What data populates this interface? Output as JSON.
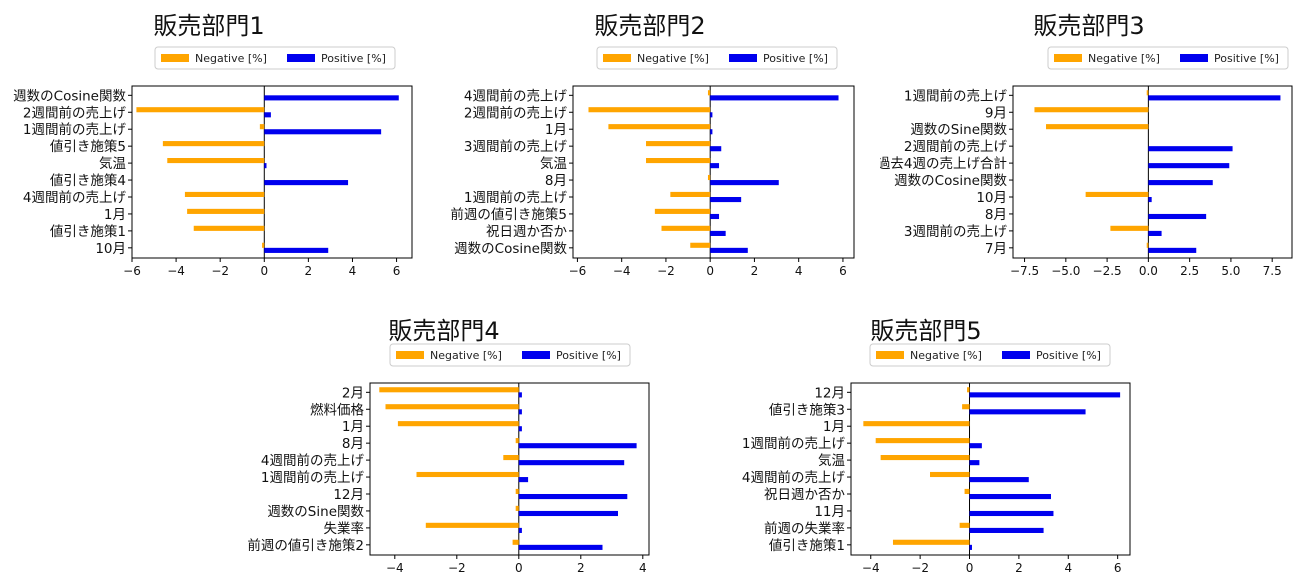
{
  "legend": {
    "negative": "Negative [%]",
    "positive": "Positive [%]"
  },
  "colors": {
    "negative": "#FFA500",
    "positive": "#0000EE"
  },
  "chart_data": [
    {
      "type": "bar",
      "orientation": "horizontal",
      "title": "販売部門1",
      "categories": [
        "週数のCosine関数",
        "2週間前の売上げ",
        "1週間前の売上げ",
        "値引き施策5",
        "気温",
        "値引き施策4",
        "4週間前の売上げ",
        "1月",
        "値引き施策1",
        "10月"
      ],
      "series": [
        {
          "name": "Negative [%]",
          "values": [
            0,
            -5.8,
            -0.2,
            -4.6,
            -4.4,
            0,
            -3.6,
            -3.5,
            -3.2,
            -0.1
          ]
        },
        {
          "name": "Positive [%]",
          "values": [
            6.1,
            0.3,
            5.3,
            0,
            0.1,
            3.8,
            0,
            0,
            0,
            2.9
          ]
        }
      ],
      "xlim": [
        -6.0,
        6.7
      ],
      "xticks": [
        -6,
        -4,
        -2,
        0,
        2,
        4,
        6
      ],
      "xtick_labels": [
        "−6",
        "−4",
        "−2",
        "0",
        "2",
        "4",
        "6"
      ],
      "legend_position": "top-center"
    },
    {
      "type": "bar",
      "orientation": "horizontal",
      "title": "販売部門2",
      "categories": [
        "4週間前の売上げ",
        "2週間前の売上げ",
        "1月",
        "3週間前の売上げ",
        "気温",
        "8月",
        "1週間前の売上げ",
        "前週の値引き施策5",
        "祝日週か否か",
        "週数のCosine関数"
      ],
      "series": [
        {
          "name": "Negative [%]",
          "values": [
            -0.1,
            -5.5,
            -4.6,
            -2.9,
            -2.9,
            -0.1,
            -1.8,
            -2.5,
            -2.2,
            -0.9
          ]
        },
        {
          "name": "Positive [%]",
          "values": [
            5.8,
            0.1,
            0.1,
            0.5,
            0.4,
            3.1,
            1.4,
            0.4,
            0.7,
            1.7
          ]
        }
      ],
      "xlim": [
        -6.2,
        6.5
      ],
      "xticks": [
        -6,
        -4,
        -2,
        0,
        2,
        4,
        6
      ],
      "xtick_labels": [
        "−6",
        "−4",
        "−2",
        "0",
        "2",
        "4",
        "6"
      ],
      "legend_position": "top-center"
    },
    {
      "type": "bar",
      "orientation": "horizontal",
      "title": "販売部門3",
      "categories": [
        "1週間前の売上げ",
        "9月",
        "週数のSine関数",
        "2週間前の売上げ",
        "過去4週の売上げ合計",
        "週数のCosine関数",
        "10月",
        "8月",
        "3週間前の売上げ",
        "7月"
      ],
      "series": [
        {
          "name": "Negative [%]",
          "values": [
            -0.1,
            -6.9,
            -6.2,
            0,
            0,
            0,
            -3.8,
            0,
            -2.3,
            -0.1
          ]
        },
        {
          "name": "Positive [%]",
          "values": [
            8.0,
            0,
            0,
            5.1,
            4.9,
            3.9,
            0.2,
            3.5,
            0.8,
            2.9
          ]
        }
      ],
      "xlim": [
        -8.2,
        8.7
      ],
      "xticks": [
        -7.5,
        -5.0,
        -2.5,
        0.0,
        2.5,
        5.0,
        7.5
      ],
      "xtick_labels": [
        "−7.5",
        "−5.0",
        "−2.5",
        "0.0",
        "2.5",
        "5.0",
        "7.5"
      ],
      "legend_position": "top-center"
    },
    {
      "type": "bar",
      "orientation": "horizontal",
      "title": "販売部門4",
      "categories": [
        "2月",
        "燃料価格",
        "1月",
        "8月",
        "4週間前の売上げ",
        "1週間前の売上げ",
        "12月",
        "週数のSine関数",
        "失業率",
        "前週の値引き施策2"
      ],
      "series": [
        {
          "name": "Negative [%]",
          "values": [
            -4.5,
            -4.3,
            -3.9,
            -0.1,
            -0.5,
            -3.3,
            -0.1,
            -0.1,
            -3.0,
            -0.2
          ]
        },
        {
          "name": "Positive [%]",
          "values": [
            0.1,
            0.1,
            0.1,
            3.8,
            3.4,
            0.3,
            3.5,
            3.2,
            0.1,
            2.7
          ]
        }
      ],
      "xlim": [
        -4.8,
        4.2
      ],
      "xticks": [
        -4,
        -2,
        0,
        2,
        4
      ],
      "xtick_labels": [
        "−4",
        "−2",
        "0",
        "2",
        "4"
      ],
      "legend_position": "top-center"
    },
    {
      "type": "bar",
      "orientation": "horizontal",
      "title": "販売部門5",
      "categories": [
        "12月",
        "値引き施策3",
        "1月",
        "1週間前の売上げ",
        "気温",
        "4週間前の売上げ",
        "祝日週か否か",
        "11月",
        "前週の失業率",
        "値引き施策1"
      ],
      "series": [
        {
          "name": "Negative [%]",
          "values": [
            -0.1,
            -0.3,
            -4.3,
            -3.8,
            -3.6,
            -1.6,
            -0.2,
            0,
            -0.4,
            -3.1
          ]
        },
        {
          "name": "Positive [%]",
          "values": [
            6.1,
            4.7,
            0,
            0.5,
            0.4,
            2.4,
            3.3,
            3.4,
            3.0,
            0.1
          ]
        }
      ],
      "xlim": [
        -4.8,
        6.5
      ],
      "xticks": [
        -4,
        -2,
        0,
        2,
        4,
        6
      ],
      "xtick_labels": [
        "−4",
        "−2",
        "0",
        "2",
        "4",
        "6"
      ],
      "legend_position": "top-center"
    }
  ]
}
